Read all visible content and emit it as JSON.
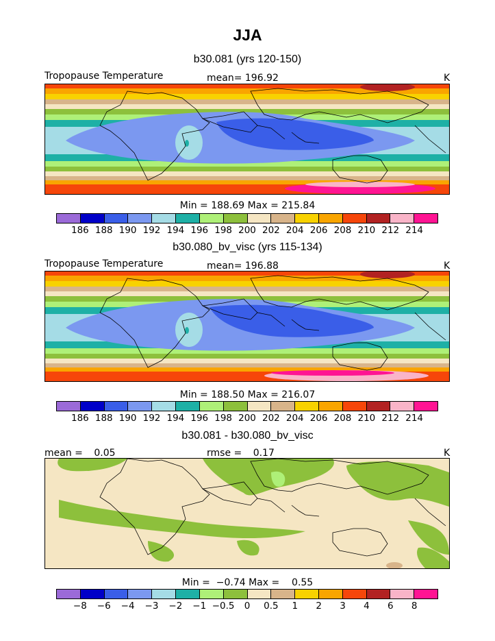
{
  "title": "JJA",
  "colors": {
    "palette": [
      "#9b6ad8",
      "#0000c8",
      "#3a5ee8",
      "#7b98f0",
      "#a5dce6",
      "#1eb0a6",
      "#aef078",
      "#8dc03c",
      "#f5e6c3",
      "#d8b48a",
      "#f8d200",
      "#f9a500",
      "#f6460a",
      "#b22222",
      "#f9b4c8",
      "#ff1493"
    ]
  },
  "panels": [
    {
      "title": "b30.081 (yrs 120-150)",
      "left_label": "Tropopause Temperature",
      "mean_label": "mean=",
      "mean_value": "196.92",
      "units": "K",
      "min_label": "Min =",
      "min_value": "188.69",
      "max_label": "Max =",
      "max_value": "215.84",
      "colorbar_ticks": [
        "186",
        "188",
        "190",
        "192",
        "194",
        "196",
        "198",
        "200",
        "202",
        "204",
        "206",
        "208",
        "210",
        "212",
        "214"
      ]
    },
    {
      "title": "b30.080_bv_visc (yrs 115-134)",
      "left_label": "Tropopause Temperature",
      "mean_label": "mean=",
      "mean_value": "196.88",
      "units": "K",
      "min_label": "Min =",
      "min_value": "188.50",
      "max_label": "Max =",
      "max_value": "216.07",
      "colorbar_ticks": [
        "186",
        "188",
        "190",
        "192",
        "194",
        "196",
        "198",
        "200",
        "202",
        "204",
        "206",
        "208",
        "210",
        "212",
        "214"
      ]
    },
    {
      "title": "b30.081 - b30.080_bv_visc",
      "mean_label": "mean =",
      "mean_value": "0.05",
      "rmse_label": "rmse =",
      "rmse_value": "0.17",
      "units": "K",
      "min_label": "Min =",
      "min_value": "−0.74",
      "max_label": "Max =",
      "max_value": "0.55",
      "colorbar_ticks": [
        "−8",
        "−6",
        "−4",
        "−3",
        "−2",
        "−1",
        "−0.5",
        "0",
        "0.5",
        "1",
        "2",
        "3",
        "4",
        "6",
        "8"
      ]
    }
  ]
}
